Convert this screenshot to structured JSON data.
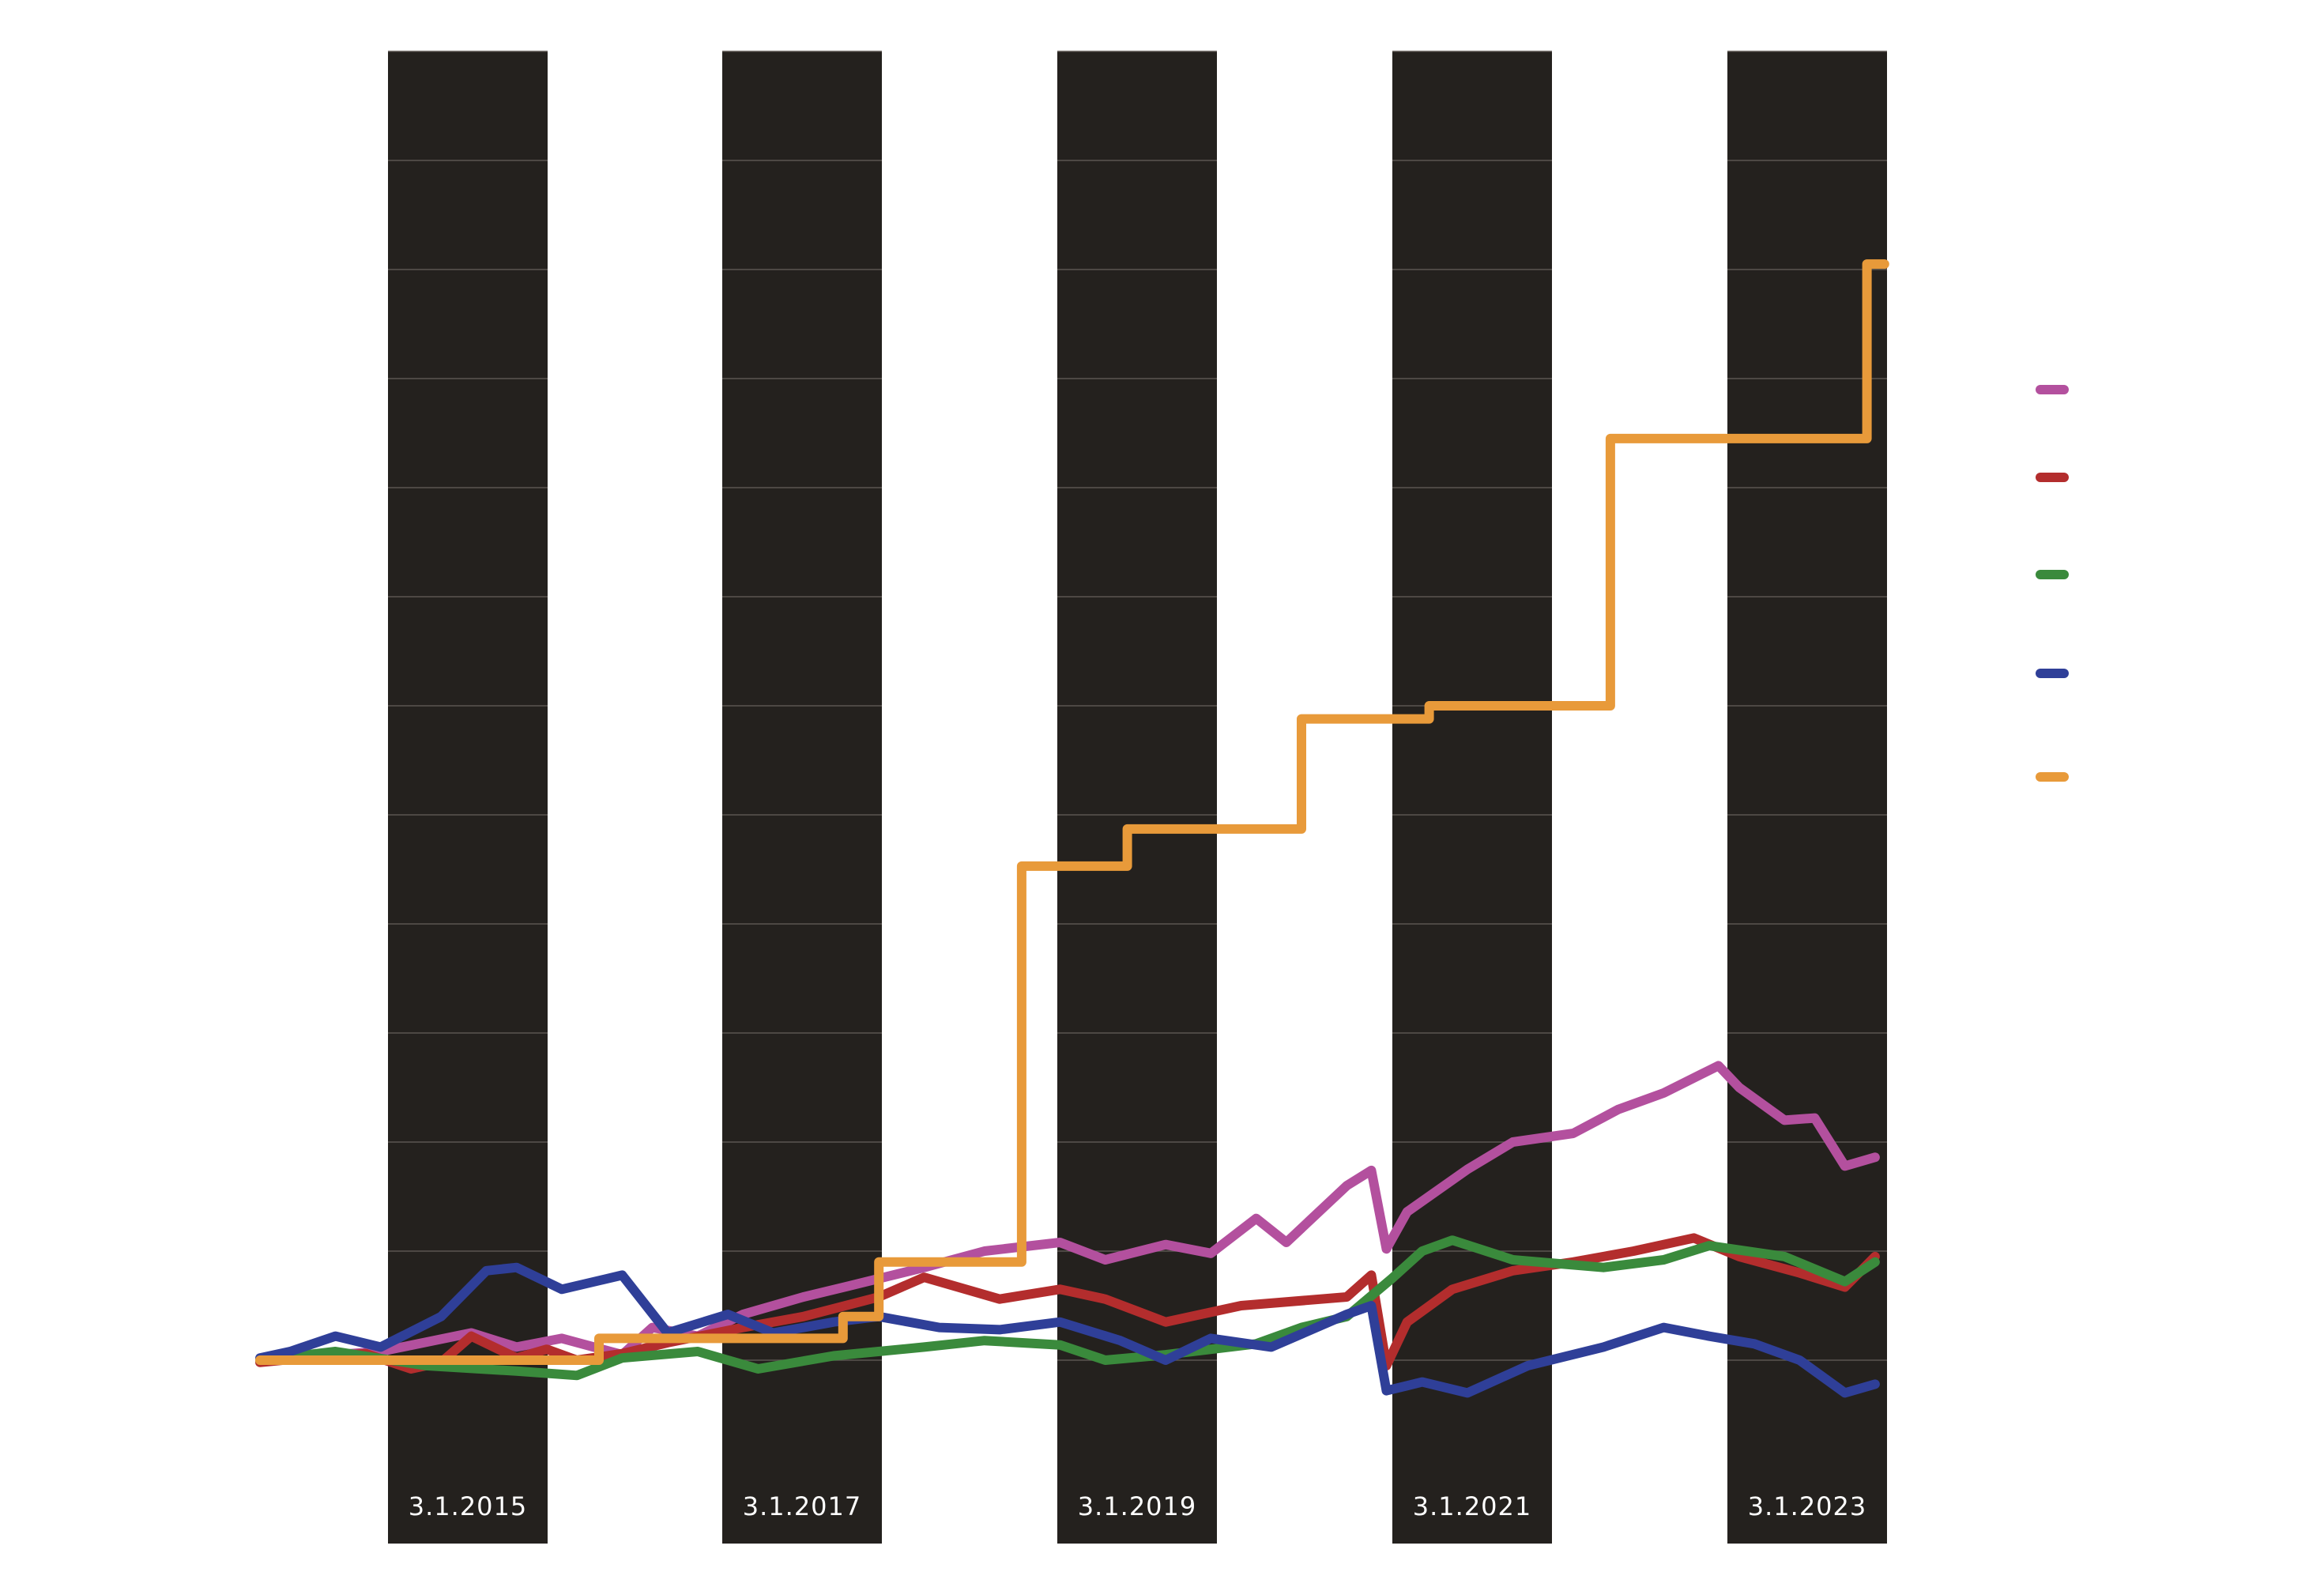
{
  "chart_data": {
    "type": "line",
    "title": "",
    "xlabel": "",
    "ylabel": "",
    "x_range": [
      "2014-01-01",
      "2023-01-01"
    ],
    "y_range": [
      0,
      13
    ],
    "grid": true,
    "alternating_year_bands": true,
    "legend_position": "right",
    "tick_labels": [
      "3.1.2015",
      "3.1.2017",
      "3.1.2019",
      "3.1.2021",
      "3.1.2023"
    ],
    "series": [
      {
        "color": "#b3509e",
        "points": [
          [
            "2014-01-01",
            1.0
          ],
          [
            "2014-06-01",
            1.05
          ],
          [
            "2014-09-01",
            1.08
          ],
          [
            "2015-03-01",
            1.25
          ],
          [
            "2015-06-01",
            1.12
          ],
          [
            "2015-09-01",
            1.2
          ],
          [
            "2016-01-01",
            1.05
          ],
          [
            "2016-03-01",
            1.3
          ],
          [
            "2016-06-01",
            1.22
          ],
          [
            "2016-09-01",
            1.42
          ],
          [
            "2017-01-01",
            1.58
          ],
          [
            "2017-04-01",
            1.68
          ],
          [
            "2017-09-01",
            1.85
          ],
          [
            "2018-01-01",
            2.0
          ],
          [
            "2018-06-01",
            2.08
          ],
          [
            "2018-09-01",
            1.92
          ],
          [
            "2019-01-01",
            2.06
          ],
          [
            "2019-04-01",
            1.98
          ],
          [
            "2019-07-01",
            2.3
          ],
          [
            "2019-09-01",
            2.08
          ],
          [
            "2020-01-01",
            2.6
          ],
          [
            "2020-02-20",
            2.74
          ],
          [
            "2020-03-20",
            2.02
          ],
          [
            "2020-05-01",
            2.36
          ],
          [
            "2020-09-01",
            2.75
          ],
          [
            "2020-12-01",
            3.0
          ],
          [
            "2021-04-01",
            3.08
          ],
          [
            "2021-07-01",
            3.3
          ],
          [
            "2021-10-01",
            3.45
          ],
          [
            "2021-12-15",
            3.62
          ],
          [
            "2022-01-20",
            3.7
          ],
          [
            "2022-03-01",
            3.5
          ],
          [
            "2022-06-01",
            3.2
          ],
          [
            "2022-08-01",
            3.22
          ],
          [
            "2022-10-01",
            2.78
          ],
          [
            "2022-12-01",
            2.86
          ]
        ]
      },
      {
        "color": "#b32d2d",
        "points": [
          [
            "2014-01-01",
            0.98
          ],
          [
            "2014-04-01",
            1.02
          ],
          [
            "2014-08-01",
            1.06
          ],
          [
            "2014-11-01",
            0.92
          ],
          [
            "2015-01-01",
            0.98
          ],
          [
            "2015-03-01",
            1.22
          ],
          [
            "2015-06-01",
            1.02
          ],
          [
            "2015-08-01",
            1.1
          ],
          [
            "2015-10-01",
            1.0
          ],
          [
            "2016-01-01",
            1.06
          ],
          [
            "2016-04-01",
            1.16
          ],
          [
            "2016-09-01",
            1.3
          ],
          [
            "2017-01-01",
            1.4
          ],
          [
            "2017-06-01",
            1.58
          ],
          [
            "2017-09-01",
            1.76
          ],
          [
            "2018-02-01",
            1.56
          ],
          [
            "2018-06-01",
            1.65
          ],
          [
            "2018-09-01",
            1.56
          ],
          [
            "2019-01-01",
            1.35
          ],
          [
            "2019-06-01",
            1.5
          ],
          [
            "2020-01-01",
            1.58
          ],
          [
            "2020-02-20",
            1.78
          ],
          [
            "2020-03-20",
            0.95
          ],
          [
            "2020-05-01",
            1.35
          ],
          [
            "2020-08-01",
            1.65
          ],
          [
            "2020-12-01",
            1.82
          ],
          [
            "2021-04-01",
            1.9
          ],
          [
            "2021-08-01",
            2.0
          ],
          [
            "2021-12-01",
            2.12
          ],
          [
            "2022-03-01",
            1.95
          ],
          [
            "2022-07-01",
            1.8
          ],
          [
            "2022-10-01",
            1.67
          ],
          [
            "2022-12-01",
            1.95
          ]
        ]
      },
      {
        "color": "#3a8a3c",
        "points": [
          [
            "2014-01-01",
            1.0
          ],
          [
            "2014-06-01",
            1.08
          ],
          [
            "2014-12-01",
            0.95
          ],
          [
            "2015-06-01",
            0.9
          ],
          [
            "2015-10-01",
            0.86
          ],
          [
            "2016-01-01",
            1.02
          ],
          [
            "2016-06-01",
            1.08
          ],
          [
            "2016-10-01",
            0.92
          ],
          [
            "2017-03-01",
            1.04
          ],
          [
            "2017-09-01",
            1.12
          ],
          [
            "2018-01-01",
            1.18
          ],
          [
            "2018-06-01",
            1.14
          ],
          [
            "2018-09-01",
            1.0
          ],
          [
            "2019-01-01",
            1.05
          ],
          [
            "2019-07-01",
            1.15
          ],
          [
            "2019-10-01",
            1.3
          ],
          [
            "2020-01-01",
            1.4
          ],
          [
            "2020-04-01",
            1.75
          ],
          [
            "2020-06-01",
            2.0
          ],
          [
            "2020-08-01",
            2.1
          ],
          [
            "2020-12-01",
            1.92
          ],
          [
            "2021-06-01",
            1.85
          ],
          [
            "2021-10-01",
            1.92
          ],
          [
            "2022-01-01",
            2.05
          ],
          [
            "2022-06-01",
            1.95
          ],
          [
            "2022-10-01",
            1.72
          ],
          [
            "2022-12-01",
            1.9
          ]
        ]
      },
      {
        "color": "#2f3f98",
        "points": [
          [
            "2014-01-01",
            1.02
          ],
          [
            "2014-03-01",
            1.08
          ],
          [
            "2014-06-01",
            1.22
          ],
          [
            "2014-09-01",
            1.12
          ],
          [
            "2015-01-01",
            1.4
          ],
          [
            "2015-04-01",
            1.82
          ],
          [
            "2015-06-01",
            1.85
          ],
          [
            "2015-09-01",
            1.65
          ],
          [
            "2016-01-01",
            1.78
          ],
          [
            "2016-04-01",
            1.25
          ],
          [
            "2016-08-01",
            1.42
          ],
          [
            "2016-11-01",
            1.25
          ],
          [
            "2017-03-01",
            1.35
          ],
          [
            "2017-06-01",
            1.4
          ],
          [
            "2017-10-01",
            1.3
          ],
          [
            "2018-02-01",
            1.28
          ],
          [
            "2018-06-01",
            1.35
          ],
          [
            "2018-10-01",
            1.18
          ],
          [
            "2019-01-01",
            1.0
          ],
          [
            "2019-04-01",
            1.2
          ],
          [
            "2019-08-01",
            1.12
          ],
          [
            "2020-01-01",
            1.42
          ],
          [
            "2020-02-20",
            1.5
          ],
          [
            "2020-03-20",
            0.72
          ],
          [
            "2020-06-01",
            0.8
          ],
          [
            "2020-09-01",
            0.7
          ],
          [
            "2021-01-01",
            0.95
          ],
          [
            "2021-06-01",
            1.12
          ],
          [
            "2021-10-01",
            1.3
          ],
          [
            "2022-01-01",
            1.22
          ],
          [
            "2022-04-01",
            1.15
          ],
          [
            "2022-07-01",
            1.0
          ],
          [
            "2022-10-01",
            0.7
          ],
          [
            "2022-12-01",
            0.78
          ]
        ]
      },
      {
        "color": "#e89a3a",
        "step": true,
        "points": [
          [
            "2014-01-01",
            1.0
          ],
          [
            "2015-11-15",
            1.2
          ],
          [
            "2017-03-20",
            1.4
          ],
          [
            "2017-06-01",
            1.9
          ],
          [
            "2018-03-15",
            5.53
          ],
          [
            "2018-10-15",
            5.87
          ],
          [
            "2019-10-01",
            6.88
          ],
          [
            "2020-06-15",
            7.0
          ],
          [
            "2021-06-15",
            9.45
          ],
          [
            "2022-11-15",
            11.05
          ],
          [
            "2022-12-20",
            11.05
          ]
        ]
      }
    ]
  }
}
